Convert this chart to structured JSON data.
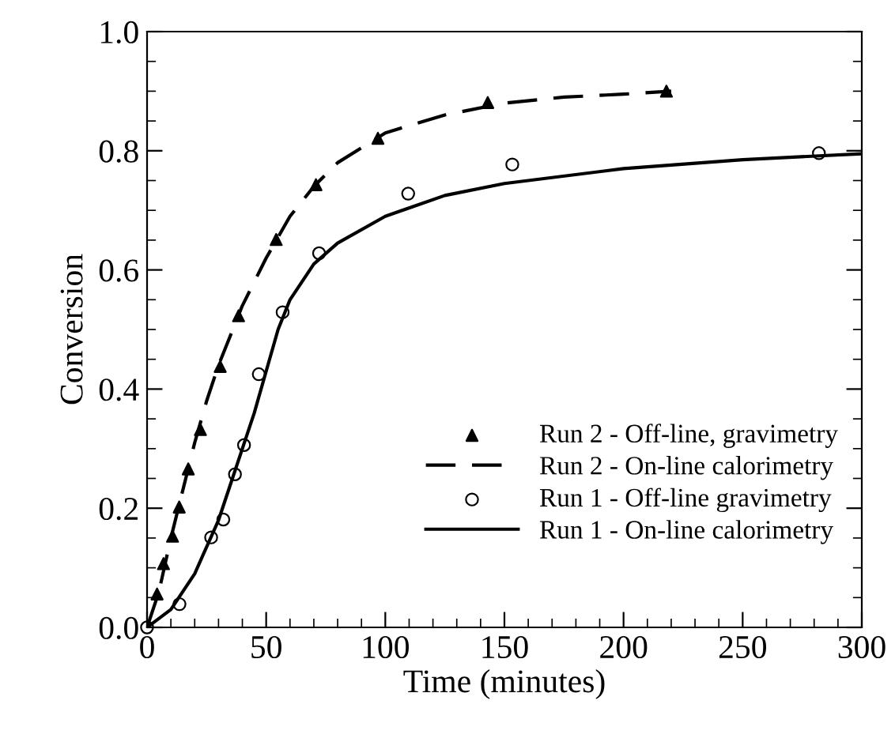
{
  "chart_data": {
    "type": "line",
    "xlabel": "Time (minutes)",
    "ylabel": "Conversion",
    "xlim": [
      0,
      300
    ],
    "xticks": [
      0,
      50,
      100,
      150,
      200,
      250,
      300
    ],
    "ylim": [
      0,
      1
    ],
    "yticks": [
      {
        "value": 0,
        "label": "0.0"
      },
      {
        "value": 0.2,
        "label": "0.2"
      },
      {
        "value": 0.4,
        "label": "0.4"
      },
      {
        "value": 0.6,
        "label": "0.6"
      },
      {
        "value": 0.8,
        "label": "0.8"
      },
      {
        "value": 1,
        "label": "1.0"
      }
    ],
    "grid": false,
    "legend": "bottom right",
    "series": [
      {
        "name": "Run 2 - Off-line, gravimetry",
        "type": "scatter",
        "marker": "triangle",
        "color": "#000000",
        "x": [
          4.2,
          6.9,
          10.7,
          13.5,
          17.3,
          22.4,
          30.7,
          38.4,
          54.2,
          70.9,
          96.9,
          143,
          218
        ],
        "values": [
          0.056,
          0.107,
          0.153,
          0.202,
          0.266,
          0.332,
          0.438,
          0.523,
          0.651,
          0.743,
          0.821,
          0.881,
          0.9
        ]
      },
      {
        "name": "Run 2 - On-line calorimetry",
        "line_style": "dashed",
        "color": "#000000",
        "x": [
          0,
          5,
          10,
          15,
          20,
          25,
          30,
          40,
          50,
          60,
          70,
          80,
          100,
          125,
          150,
          175,
          200,
          220
        ],
        "values": [
          0,
          0.06,
          0.15,
          0.23,
          0.31,
          0.38,
          0.44,
          0.54,
          0.62,
          0.69,
          0.74,
          0.78,
          0.83,
          0.86,
          0.88,
          0.89,
          0.895,
          0.9
        ]
      },
      {
        "name": "Run 1 - Off-line gravimetry",
        "type": "scatter",
        "marker": "circle",
        "color": "#000000",
        "x": [
          0,
          13.6,
          26.9,
          32,
          36.9,
          40.7,
          46.9,
          56.9,
          72.2,
          109.6,
          153.3,
          282
        ],
        "values": [
          0,
          0.039,
          0.151,
          0.181,
          0.257,
          0.306,
          0.425,
          0.529,
          0.628,
          0.728,
          0.777,
          0.796
        ]
      },
      {
        "name": "Run 1 - On-line calorimetry",
        "line_style": "solid",
        "color": "#000000",
        "x": [
          0,
          10,
          20,
          30,
          40,
          45,
          50,
          55,
          60,
          70,
          80,
          100,
          125,
          150,
          200,
          250,
          300
        ],
        "values": [
          0,
          0.03,
          0.09,
          0.18,
          0.3,
          0.36,
          0.43,
          0.5,
          0.55,
          0.61,
          0.645,
          0.69,
          0.725,
          0.745,
          0.77,
          0.785,
          0.795
        ]
      }
    ]
  }
}
